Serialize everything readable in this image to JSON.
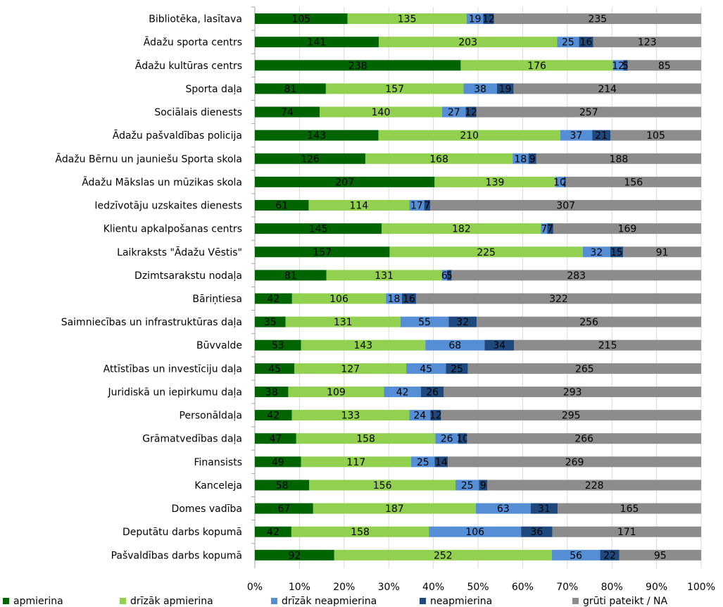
{
  "chart_data": {
    "type": "bar",
    "orientation": "horizontal",
    "stacked": "percent",
    "categories": [
      "Bibliotēka, lasītava",
      "Ādažu sporta centrs",
      "Ādažu kultūras centrs",
      "Sporta daļa",
      "Sociālais dienests",
      "Ādažu pašvaldības policija",
      "Ādažu Bērnu un jauniešu Sporta skola",
      "Ādažu Mākslas un mūzikas skola",
      "Iedzīvotāju uzskaites dienests",
      "Klientu apkalpošanas centrs",
      "Laikraksts \"Ādažu Vēstis\"",
      "Dzimtsarakstu nodaļa",
      "Bāriņtiesa",
      "Saimniecības un infrastruktūras daļa",
      "Būvvalde",
      "Attīstības un investīciju daļa",
      "Juridiskā un iepirkumu daļa",
      "Personāldaļa",
      "Grāmatvedības daļa",
      "Finansists",
      "Kanceleja",
      "Domes vadība",
      "Deputātu darbs kopumā",
      "Pašvaldības darbs kopumā"
    ],
    "series": [
      {
        "name": "apmierina",
        "color": "#006400",
        "values": [
          105,
          141,
          238,
          81,
          74,
          143,
          126,
          207,
          61,
          145,
          157,
          81,
          42,
          35,
          53,
          45,
          38,
          42,
          47,
          49,
          58,
          67,
          42,
          92
        ]
      },
      {
        "name": "drīzāk apmierina",
        "color": "#92D050",
        "values": [
          135,
          203,
          176,
          157,
          140,
          210,
          168,
          139,
          114,
          182,
          225,
          131,
          106,
          131,
          143,
          127,
          109,
          133,
          158,
          117,
          156,
          187,
          158,
          252
        ]
      },
      {
        "name": "drīzāk neapmierina",
        "color": "#558ED5",
        "values": [
          19,
          25,
          12,
          38,
          27,
          37,
          18,
          10,
          17,
          7,
          32,
          6,
          18,
          55,
          68,
          45,
          42,
          24,
          26,
          25,
          25,
          63,
          106,
          56
        ]
      },
      {
        "name": "neapmierina",
        "color": "#1F497D",
        "values": [
          12,
          16,
          5,
          19,
          12,
          21,
          9,
          2,
          7,
          7,
          15,
          5,
          16,
          32,
          34,
          25,
          26,
          12,
          10,
          14,
          9,
          31,
          36,
          22
        ]
      },
      {
        "name": "grūti pateikt / NA",
        "color": "#8C8C8C",
        "values": [
          235,
          123,
          85,
          214,
          257,
          105,
          188,
          156,
          307,
          169,
          91,
          283,
          322,
          256,
          215,
          265,
          293,
          295,
          266,
          269,
          228,
          165,
          171,
          95
        ]
      }
    ],
    "xaxis": {
      "ticks": [
        "0%",
        "10%",
        "20%",
        "30%",
        "40%",
        "50%",
        "60%",
        "70%",
        "80%",
        "90%",
        "100%"
      ],
      "range": [
        0,
        100
      ]
    },
    "grid": true,
    "legend": "bottom"
  }
}
